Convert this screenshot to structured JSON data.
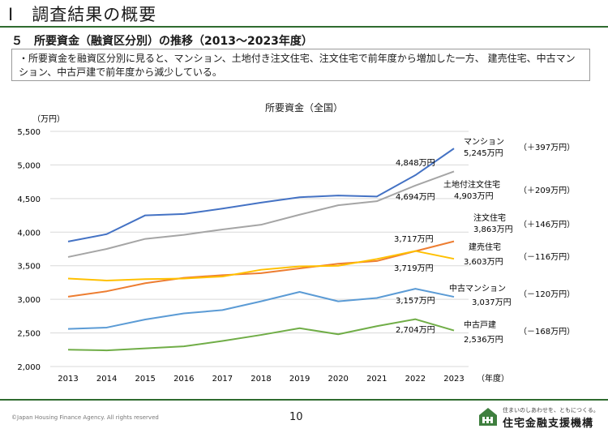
{
  "page": {
    "title": "Ⅰ　調査結果の概要",
    "subtitle": "５　所要資金（融資区分別）の推移（2013～2023年度）",
    "summary": "・所要資金を融資区分別に見ると、マンション、土地付き注文住宅、注文住宅で前年度から増加した一方、 建売住宅、中古マンション、中古戸建で前年度から減少している。",
    "copyright": "©Japan Housing Finance Agency. All rights reserved",
    "page_number": "10",
    "slogan": "住まいのしあわせを、ともにつくる。",
    "org_name": "住宅金融支援機構"
  },
  "chart_data": {
    "type": "line",
    "title": "所要資金（全国）",
    "y_unit_label": "（万円）",
    "x_unit_label": "（年度）",
    "x": [
      "2013",
      "2014",
      "2015",
      "2016",
      "2017",
      "2018",
      "2019",
      "2020",
      "2021",
      "2022",
      "2023"
    ],
    "ylim": [
      2000,
      5500
    ],
    "yticks": [
      "2,000",
      "2,500",
      "3,000",
      "3,500",
      "4,000",
      "4,500",
      "5,000",
      "5,500"
    ],
    "ytick_values": [
      2000,
      2500,
      3000,
      3500,
      4000,
      4500,
      5000,
      5500
    ],
    "grid": true,
    "series": [
      {
        "name": "マンション",
        "color": "#4472c4",
        "values": [
          3860,
          3970,
          4250,
          4270,
          4350,
          4440,
          4520,
          4545,
          4530,
          4848,
          5245
        ],
        "label_2022": "4,848万円",
        "label_2023": "5,245万円",
        "change": "（＋397万円）"
      },
      {
        "name": "土地付注文住宅",
        "color": "#a5a5a5",
        "values": [
          3630,
          3750,
          3900,
          3960,
          4040,
          4110,
          4260,
          4400,
          4460,
          4694,
          4903
        ],
        "label_2022": "4,694万円",
        "label_2023": "4,903万円",
        "change": "（＋209万円）"
      },
      {
        "name": "注文住宅",
        "color": "#ed7d31",
        "values": [
          3040,
          3120,
          3240,
          3320,
          3360,
          3390,
          3460,
          3530,
          3570,
          3717,
          3863
        ],
        "label_2022": "3,717万円",
        "label_2023": "3,863万円",
        "change": "（＋146万円）"
      },
      {
        "name": "建売住宅",
        "color": "#ffc000",
        "values": [
          3310,
          3280,
          3300,
          3310,
          3340,
          3440,
          3490,
          3500,
          3600,
          3719,
          3603
        ],
        "label_2022": "3,719万円",
        "label_2023": "3,603万円",
        "change": "（－116万円）"
      },
      {
        "name": "中古マンション",
        "color": "#5b9bd5",
        "values": [
          2560,
          2580,
          2700,
          2790,
          2840,
          2970,
          3110,
          2970,
          3020,
          3157,
          3037
        ],
        "label_2022": "3,157万円",
        "label_2023": "3,037万円",
        "change": "（－120万円）"
      },
      {
        "name": "中古戸建",
        "color": "#70ad47",
        "values": [
          2250,
          2240,
          2270,
          2300,
          2380,
          2470,
          2570,
          2480,
          2600,
          2704,
          2536
        ],
        "label_2022": "2,704万円",
        "label_2023": "2,536万円",
        "change": "（－168万円）"
      }
    ]
  }
}
